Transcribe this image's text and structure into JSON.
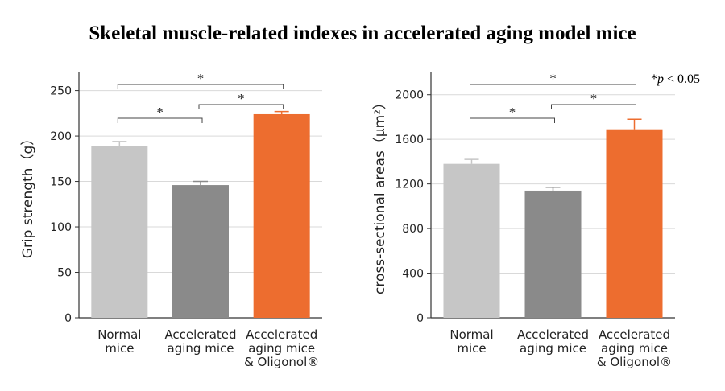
{
  "title": "Skeletal muscle-related indexes in accelerated aging model mice",
  "p_note": {
    "symbol": "*",
    "italic": "p",
    "rest": " < 0.05"
  },
  "colors": {
    "normal": "#c6c6c6",
    "accelerated": "#8a8a8a",
    "oligonol": "#ed6d2f"
  },
  "chart_data": [
    {
      "type": "bar",
      "ylabel": "Grip strength（g）",
      "ylim": [
        0,
        270
      ],
      "yticks": [
        "0",
        "50",
        "100",
        "150",
        "200",
        "250"
      ],
      "grid": true,
      "categories": [
        [
          "Normal",
          "mice"
        ],
        [
          "Accelerated",
          "aging mice"
        ],
        [
          "Accelerated",
          "aging mice",
          "& Oligonol®"
        ]
      ],
      "values": [
        189,
        146,
        224
      ],
      "errors": [
        5,
        4,
        3
      ],
      "significance": [
        {
          "from": 0,
          "to": 1,
          "label": "*"
        },
        {
          "from": 1,
          "to": 2,
          "label": "*"
        },
        {
          "from": 0,
          "to": 2,
          "label": "*"
        }
      ]
    },
    {
      "type": "bar",
      "ylabel": "cross-sectional areas（μm²）",
      "ylim": [
        0,
        2200
      ],
      "yticks": [
        "0",
        "400",
        "800",
        "1200",
        "1600",
        "2000"
      ],
      "grid": true,
      "categories": [
        [
          "Normal",
          "mice"
        ],
        [
          "Accelerated",
          "aging mice"
        ],
        [
          "Accelerated",
          "aging mice",
          "& Oligonol®"
        ]
      ],
      "values": [
        1380,
        1140,
        1690
      ],
      "errors": [
        40,
        30,
        90
      ],
      "significance": [
        {
          "from": 0,
          "to": 1,
          "label": "*"
        },
        {
          "from": 1,
          "to": 2,
          "label": "*"
        },
        {
          "from": 0,
          "to": 2,
          "label": "*"
        }
      ]
    }
  ]
}
